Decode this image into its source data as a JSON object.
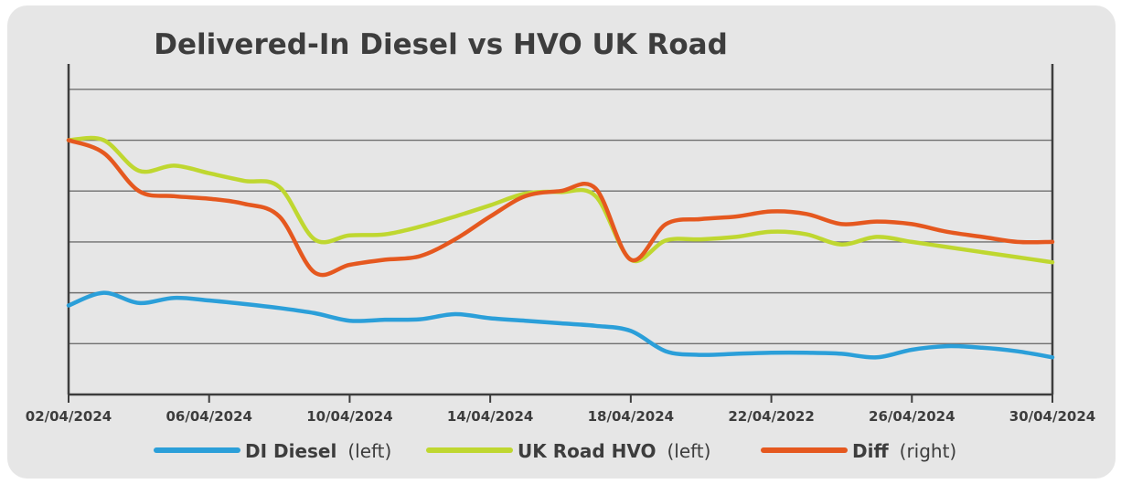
{
  "chart_data": {
    "type": "line",
    "title": "Delivered-In Diesel vs HVO UK Road",
    "xlabel": "",
    "ylabel": "",
    "x_tick_labels": [
      "02/04/2024",
      "06/04/2024",
      "10/04/2024",
      "14/04/2024",
      "18/04/2024",
      "22/04/2022",
      "26/04/2024",
      "30/04/2024"
    ],
    "x_range": [
      0,
      28
    ],
    "y_range": [
      0,
      6.5
    ],
    "grid": "horizontal",
    "legend_position": "bottom",
    "series": [
      {
        "name": "DI Diesel",
        "note": "(left)",
        "color": "#2b9fd9",
        "x": [
          0,
          1,
          2,
          3,
          4,
          5,
          6,
          7,
          8,
          9,
          10,
          11,
          12,
          13,
          14,
          15,
          16,
          17,
          18,
          19,
          20,
          21,
          22,
          23,
          24,
          25,
          26,
          27,
          28
        ],
        "y": [
          1.75,
          2.0,
          1.8,
          1.9,
          1.85,
          1.78,
          1.7,
          1.6,
          1.45,
          1.47,
          1.48,
          1.58,
          1.5,
          1.45,
          1.4,
          1.35,
          1.25,
          0.85,
          0.78,
          0.8,
          0.82,
          0.82,
          0.8,
          0.73,
          0.88,
          0.95,
          0.92,
          0.85,
          0.73
        ]
      },
      {
        "name": "UK Road HVO",
        "note": "(left)",
        "color": "#bfd730",
        "x": [
          0,
          1,
          2,
          3,
          4,
          5,
          6,
          7,
          8,
          9,
          10,
          11,
          12,
          13,
          14,
          15,
          16,
          17,
          18,
          19,
          20,
          21,
          22,
          23,
          24,
          25,
          26,
          27,
          28
        ],
        "y": [
          5.0,
          5.0,
          4.4,
          4.5,
          4.35,
          4.2,
          4.08,
          3.05,
          3.13,
          3.15,
          3.3,
          3.5,
          3.72,
          3.95,
          3.98,
          3.9,
          2.65,
          3.03,
          3.05,
          3.1,
          3.2,
          3.15,
          2.95,
          3.1,
          3.0,
          2.9,
          2.8,
          2.7,
          2.6
        ]
      },
      {
        "name": "Diff",
        "note": "(right)",
        "color": "#e5581f",
        "x": [
          0,
          1,
          2,
          3,
          4,
          5,
          6,
          7,
          8,
          9,
          10,
          11,
          12,
          13,
          14,
          15,
          16,
          17,
          18,
          19,
          20,
          21,
          22,
          23,
          24,
          25,
          26,
          27,
          28
        ],
        "y": [
          5.0,
          4.75,
          4.0,
          3.9,
          3.85,
          3.75,
          3.5,
          2.4,
          2.55,
          2.65,
          2.72,
          3.05,
          3.5,
          3.9,
          4.0,
          4.05,
          2.65,
          3.35,
          3.45,
          3.5,
          3.6,
          3.55,
          3.35,
          3.4,
          3.35,
          3.2,
          3.1,
          3.0,
          3.0
        ]
      }
    ]
  }
}
